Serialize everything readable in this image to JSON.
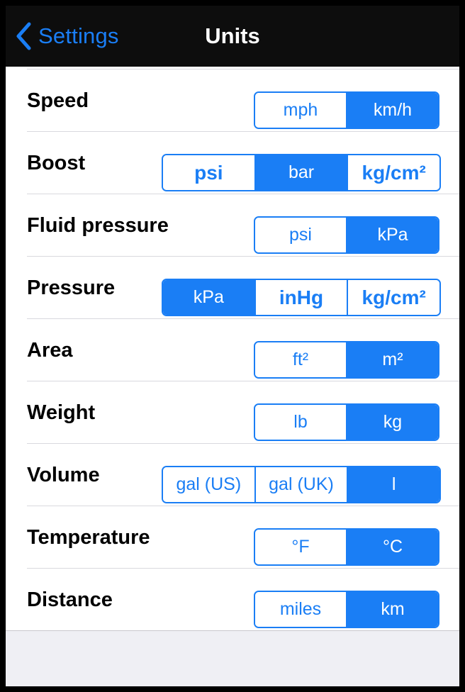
{
  "navbar": {
    "back_label": "Settings",
    "title": "Units"
  },
  "colors": {
    "accent": "#1a7ef5",
    "navbar_bg": "#0d0d0d"
  },
  "rows": [
    {
      "label": "Speed",
      "options": [
        "mph",
        "km/h"
      ],
      "selected": 1,
      "bold": []
    },
    {
      "label": "Boost",
      "options": [
        "psi",
        "bar",
        "kg/cm²"
      ],
      "selected": 1,
      "bold": [
        0,
        2
      ]
    },
    {
      "label": "Fluid pressure",
      "options": [
        "psi",
        "kPa"
      ],
      "selected": 1,
      "bold": []
    },
    {
      "label": "Pressure",
      "options": [
        "kPa",
        "inHg",
        "kg/cm²"
      ],
      "selected": 0,
      "bold": [
        1,
        2
      ]
    },
    {
      "label": "Area",
      "options": [
        "ft²",
        "m²"
      ],
      "selected": 1,
      "bold": []
    },
    {
      "label": "Weight",
      "options": [
        "lb",
        "kg"
      ],
      "selected": 1,
      "bold": []
    },
    {
      "label": "Volume",
      "options": [
        "gal (US)",
        "gal (UK)",
        "l"
      ],
      "selected": 2,
      "bold": []
    },
    {
      "label": "Temperature",
      "options": [
        "°F",
        "°C"
      ],
      "selected": 1,
      "bold": []
    },
    {
      "label": "Distance",
      "options": [
        "miles",
        "km"
      ],
      "selected": 1,
      "bold": []
    }
  ]
}
